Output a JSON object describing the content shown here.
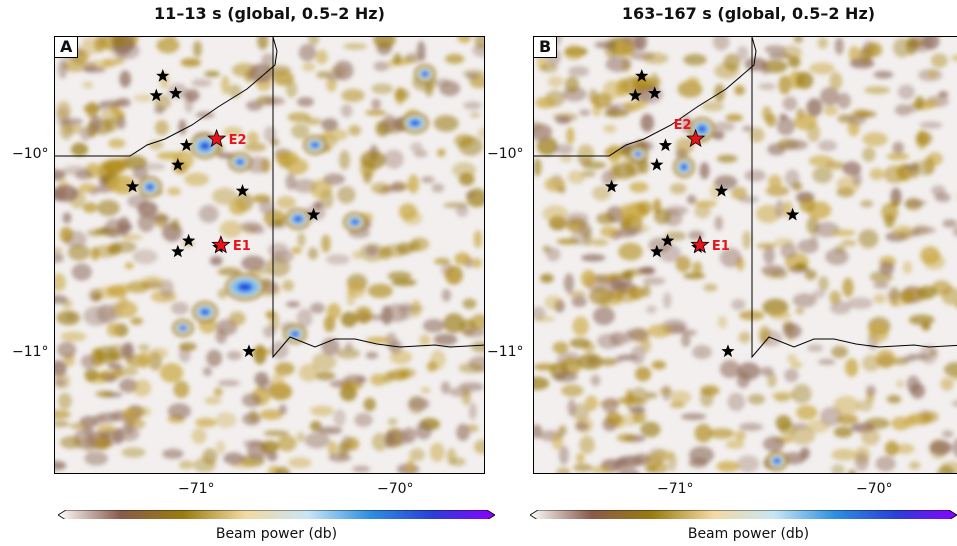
{
  "panels": [
    {
      "letter": "A",
      "title": "11–13 s (global, 0.5–2 Hz)",
      "events": [
        {
          "name": "E2",
          "lon": -71.0,
          "lat": -10.05
        },
        {
          "name": "E1",
          "lon": -70.98,
          "lat": -10.54
        }
      ]
    },
    {
      "letter": "B",
      "title": "163–167 s (global, 0.5–2 Hz)",
      "events": [
        {
          "name": "E2",
          "lon": -71.0,
          "lat": -10.05
        },
        {
          "name": "E1",
          "lon": -70.98,
          "lat": -10.54
        }
      ]
    }
  ],
  "axes": {
    "y_ticks": [
      "−10°",
      "−11°"
    ],
    "x_ticks": [
      "−71°",
      "−70°"
    ],
    "lon_range": [
      -71.75,
      -69.75
    ],
    "lat_range": [
      -11.6,
      -9.58
    ]
  },
  "colorbar": {
    "label": "Beam power (db)",
    "colors": [
      "#ffffff",
      "#8b5a4a",
      "#9a7a10",
      "#f3d9a0",
      "#c8e6f5",
      "#2f8fe0",
      "#2a3fd8",
      "#8b00ff"
    ]
  },
  "stations": [
    {
      "lon": -71.25,
      "lat": -9.76
    },
    {
      "lon": -71.28,
      "lat": -9.85
    },
    {
      "lon": -71.19,
      "lat": -9.84
    },
    {
      "lon": -71.14,
      "lat": -10.08
    },
    {
      "lon": -71.18,
      "lat": -10.17
    },
    {
      "lon": -71.39,
      "lat": -10.27
    },
    {
      "lon": -70.88,
      "lat": -10.29
    },
    {
      "lon": -70.55,
      "lat": -10.4
    },
    {
      "lon": -71.13,
      "lat": -10.52
    },
    {
      "lon": -71.18,
      "lat": -10.57
    },
    {
      "lon": -70.99,
      "lat": -10.55
    },
    {
      "lon": -70.85,
      "lat": -11.03
    }
  ]
}
